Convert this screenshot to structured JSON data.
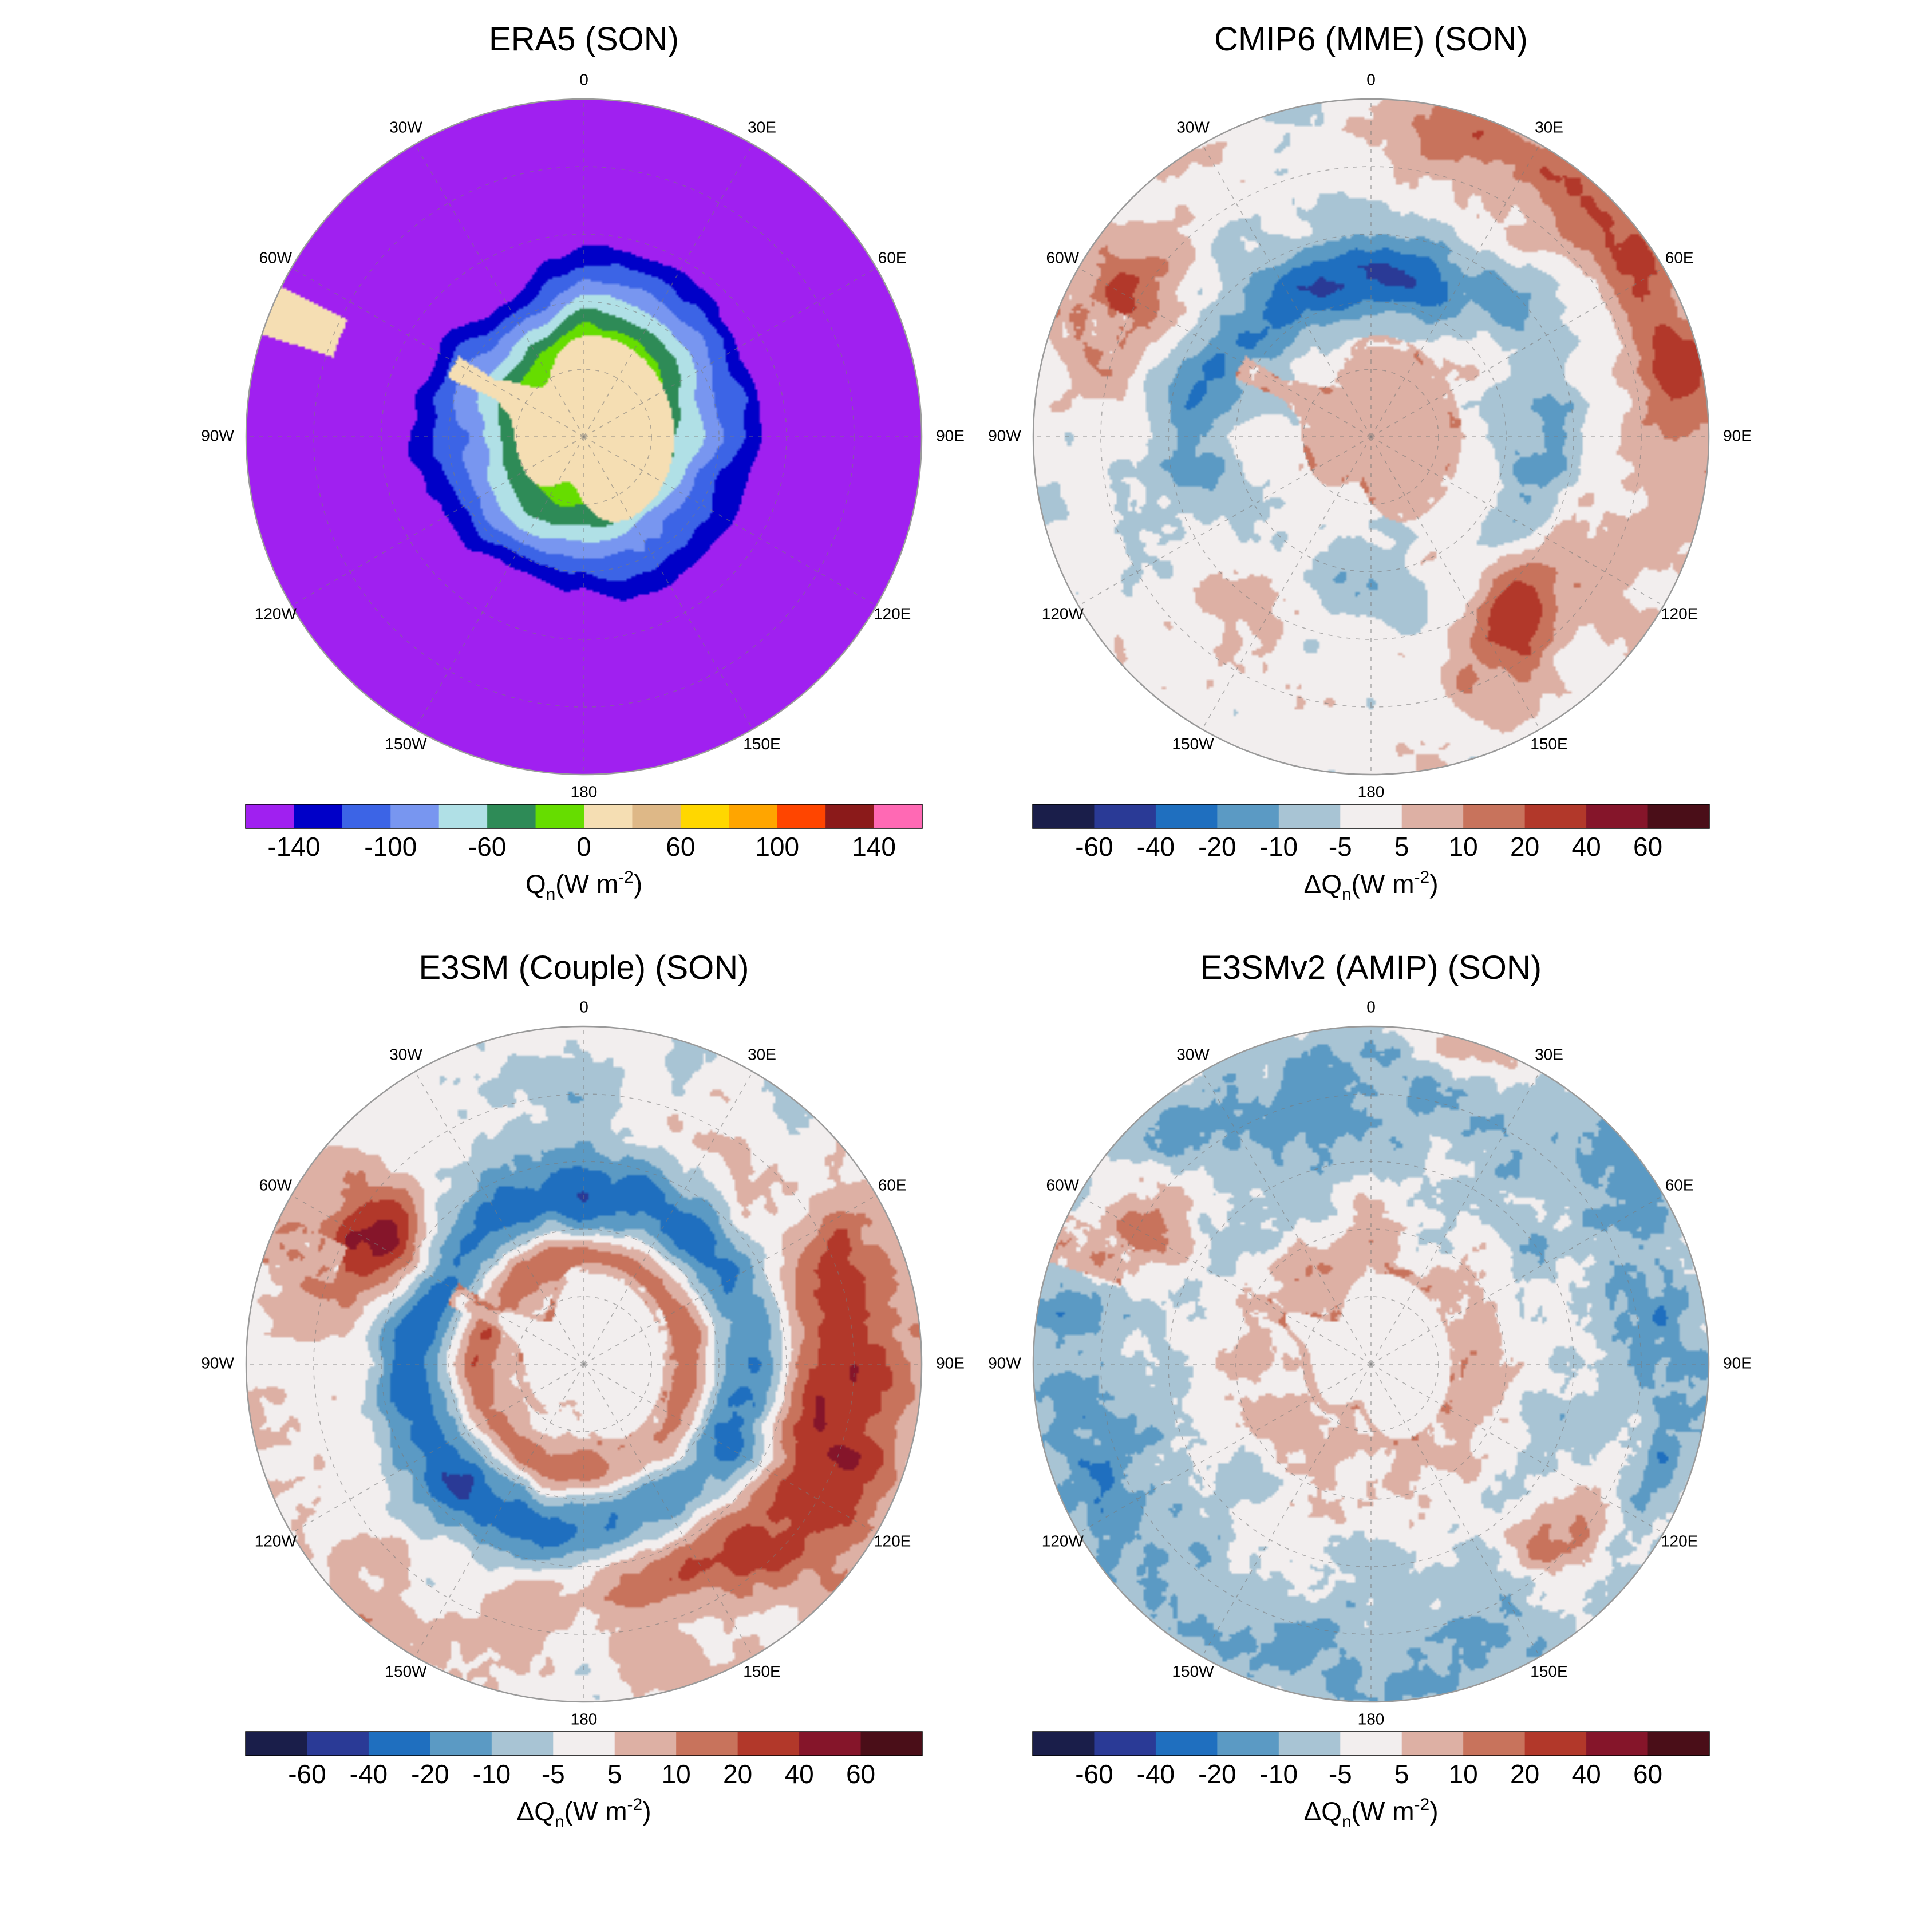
{
  "figure": {
    "panels": [
      {
        "id": "era5",
        "title": "ERA5  (SON)",
        "scale": "absolute",
        "colorbar": {
          "colors": [
            "#a020f0",
            "#0000c8",
            "#3c64e6",
            "#7896f0",
            "#b0e0e6",
            "#2e8b57",
            "#66dd00",
            "#f5deb3",
            "#deb887",
            "#ffd700",
            "#ffa500",
            "#ff4500",
            "#8b1a1a",
            "#ff69b4"
          ],
          "tick_labels": [
            "-140",
            "-100",
            "-60",
            "0",
            "60",
            "100",
            "140"
          ],
          "tick_boundaries": [
            1,
            3,
            5,
            7,
            9,
            11,
            13
          ],
          "unit_main": "Q",
          "unit_sub": "n",
          "unit_rest": "(W m",
          "unit_sup": "-2",
          "unit_close": ")"
        }
      },
      {
        "id": "cmip6",
        "title": "CMIP6 (MME)  (SON)",
        "scale": "anomaly",
        "pattern": "cmip6",
        "colorbar": {
          "colors": [
            "#1a1e4a",
            "#2a3a96",
            "#1f6fbf",
            "#5b9ac4",
            "#a8c4d4",
            "#f2eeee",
            "#ddb0a4",
            "#c8735c",
            "#b2382a",
            "#85152a",
            "#4a0e18"
          ],
          "tick_labels": [
            "-60",
            "-40",
            "-20",
            "-10",
            "-5",
            "5",
            "10",
            "20",
            "40",
            "60"
          ],
          "tick_boundaries": [
            1,
            2,
            3,
            4,
            5,
            6,
            7,
            8,
            9,
            10
          ],
          "unit_main": "ΔQ",
          "unit_sub": "n",
          "unit_rest": "(W m",
          "unit_sup": "-2",
          "unit_close": ")"
        }
      },
      {
        "id": "e3sm_couple",
        "title": "E3SM (Couple)  (SON)",
        "scale": "anomaly",
        "pattern": "couple",
        "colorbar": {
          "colors": [
            "#1a1e4a",
            "#2a3a96",
            "#1f6fbf",
            "#5b9ac4",
            "#a8c4d4",
            "#f2eeee",
            "#ddb0a4",
            "#c8735c",
            "#b2382a",
            "#85152a",
            "#4a0e18"
          ],
          "tick_labels": [
            "-60",
            "-40",
            "-20",
            "-10",
            "-5",
            "5",
            "10",
            "20",
            "40",
            "60"
          ],
          "tick_boundaries": [
            1,
            2,
            3,
            4,
            5,
            6,
            7,
            8,
            9,
            10
          ],
          "unit_main": "ΔQ",
          "unit_sub": "n",
          "unit_rest": "(W m",
          "unit_sup": "-2",
          "unit_close": ")"
        }
      },
      {
        "id": "e3smv2_amip",
        "title": "E3SMv2 (AMIP)  (SON)",
        "scale": "anomaly",
        "pattern": "amip",
        "colorbar": {
          "colors": [
            "#1a1e4a",
            "#2a3a96",
            "#1f6fbf",
            "#5b9ac4",
            "#a8c4d4",
            "#f2eeee",
            "#ddb0a4",
            "#c8735c",
            "#b2382a",
            "#85152a",
            "#4a0e18"
          ],
          "tick_labels": [
            "-60",
            "-40",
            "-20",
            "-10",
            "-5",
            "5",
            "10",
            "20",
            "40",
            "60"
          ],
          "tick_boundaries": [
            1,
            2,
            3,
            4,
            5,
            6,
            7,
            8,
            9,
            10
          ],
          "unit_main": "ΔQ",
          "unit_sub": "n",
          "unit_rest": "(W m",
          "unit_sup": "-2",
          "unit_close": ")"
        }
      }
    ],
    "longitude_labels": [
      {
        "text": "0",
        "deg": 0
      },
      {
        "text": "30E",
        "deg": 30
      },
      {
        "text": "60E",
        "deg": 60
      },
      {
        "text": "90E",
        "deg": 90
      },
      {
        "text": "120E",
        "deg": 120
      },
      {
        "text": "150E",
        "deg": 150
      },
      {
        "text": "180",
        "deg": 180
      },
      {
        "text": "150W",
        "deg": 210
      },
      {
        "text": "120W",
        "deg": 240
      },
      {
        "text": "90W",
        "deg": 270
      },
      {
        "text": "60W",
        "deg": 300
      },
      {
        "text": "30W",
        "deg": 330
      }
    ],
    "map_projection": "south-polar-stereographic",
    "grid": true
  }
}
